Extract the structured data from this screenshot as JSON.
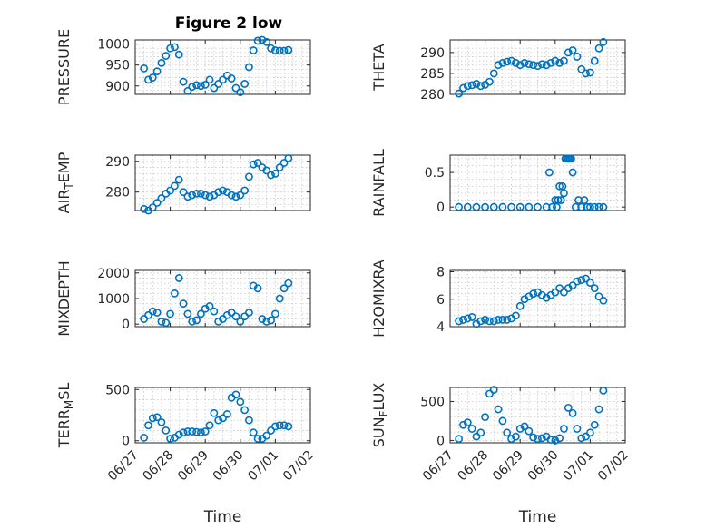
{
  "figure": {
    "title": "Figure 2 low"
  },
  "chart_data": [
    {
      "id": "pressure",
      "type": "scatter",
      "title": "Figure 2 low",
      "ylabel": "PRESSURE",
      "ylabel_sub": "",
      "ylabel_tail": "",
      "xlim": [
        "06/27",
        "07/02"
      ],
      "ylim": [
        880,
        1010
      ],
      "yticks": [
        900,
        950,
        1000
      ],
      "xlabel": "",
      "show_xticklabels": false,
      "x": [
        "06/27 06:00",
        "06/27 09:00",
        "06/27 12:00",
        "06/27 15:00",
        "06/27 18:00",
        "06/27 21:00",
        "06/28 00:00",
        "06/28 03:00",
        "06/28 06:00",
        "06/28 09:00",
        "06/28 12:00",
        "06/28 15:00",
        "06/28 18:00",
        "06/28 21:00",
        "06/29 00:00",
        "06/29 03:00",
        "06/29 06:00",
        "06/29 09:00",
        "06/29 12:00",
        "06/29 15:00",
        "06/29 18:00",
        "06/29 21:00",
        "06/30 00:00",
        "06/30 03:00",
        "06/30 06:00",
        "06/30 09:00",
        "06/30 12:00",
        "06/30 15:00",
        "06/30 18:00",
        "06/30 21:00",
        "07/01 00:00",
        "07/01 03:00",
        "07/01 06:00",
        "07/01 09:00"
      ],
      "y": [
        942,
        915,
        920,
        935,
        955,
        972,
        990,
        993,
        975,
        910,
        888,
        898,
        902,
        900,
        903,
        915,
        895,
        905,
        915,
        925,
        918,
        895,
        885,
        905,
        945,
        985,
        1008,
        1010,
        1005,
        990,
        985,
        984,
        984,
        986
      ]
    },
    {
      "id": "theta",
      "type": "scatter",
      "title": "",
      "ylabel": "THETA",
      "ylabel_sub": "",
      "ylabel_tail": "",
      "xlim": [
        "06/27",
        "07/02"
      ],
      "ylim": [
        280,
        293
      ],
      "yticks": [
        280,
        285,
        290
      ],
      "xlabel": "",
      "show_xticklabels": false,
      "x": [
        "06/27 06:00",
        "06/27 09:00",
        "06/27 12:00",
        "06/27 15:00",
        "06/27 18:00",
        "06/27 21:00",
        "06/28 00:00",
        "06/28 03:00",
        "06/28 06:00",
        "06/28 09:00",
        "06/28 12:00",
        "06/28 15:00",
        "06/28 18:00",
        "06/28 21:00",
        "06/29 00:00",
        "06/29 03:00",
        "06/29 06:00",
        "06/29 09:00",
        "06/29 12:00",
        "06/29 15:00",
        "06/29 18:00",
        "06/29 21:00",
        "06/30 00:00",
        "06/30 03:00",
        "06/30 06:00",
        "06/30 09:00",
        "06/30 12:00",
        "06/30 15:00",
        "06/30 18:00",
        "06/30 21:00",
        "07/01 00:00",
        "07/01 03:00",
        "07/01 06:00",
        "07/01 09:00"
      ],
      "y": [
        280.2,
        281.5,
        282.0,
        282.2,
        282.5,
        282.0,
        282.3,
        283.0,
        285.0,
        287.0,
        287.5,
        287.8,
        288.0,
        287.5,
        287.0,
        287.5,
        287.2,
        287.0,
        286.8,
        287.2,
        287.0,
        287.5,
        288.0,
        287.5,
        288.0,
        290.0,
        290.5,
        289.0,
        286.0,
        285.0,
        285.2,
        288.0,
        291.0,
        292.5
      ]
    },
    {
      "id": "air_temp",
      "type": "scatter",
      "title": "",
      "ylabel": "AIR",
      "ylabel_sub": "T",
      "ylabel_tail": "EMP",
      "xlim": [
        "06/27",
        "07/02"
      ],
      "ylim": [
        274,
        292
      ],
      "yticks": [
        280,
        290
      ],
      "xlabel": "",
      "show_xticklabels": false,
      "x": [
        "06/27 06:00",
        "06/27 09:00",
        "06/27 12:00",
        "06/27 15:00",
        "06/27 18:00",
        "06/27 21:00",
        "06/28 00:00",
        "06/28 03:00",
        "06/28 06:00",
        "06/28 09:00",
        "06/28 12:00",
        "06/28 15:00",
        "06/28 18:00",
        "06/28 21:00",
        "06/29 00:00",
        "06/29 03:00",
        "06/29 06:00",
        "06/29 09:00",
        "06/29 12:00",
        "06/29 15:00",
        "06/29 18:00",
        "06/29 21:00",
        "06/30 00:00",
        "06/30 03:00",
        "06/30 06:00",
        "06/30 09:00",
        "06/30 12:00",
        "06/30 15:00",
        "06/30 18:00",
        "06/30 21:00",
        "07/01 00:00",
        "07/01 03:00",
        "07/01 06:00",
        "07/01 09:00"
      ],
      "y": [
        274.5,
        274.0,
        275.0,
        276.5,
        278.0,
        279.5,
        280.5,
        282.0,
        284.0,
        280.0,
        278.5,
        279.0,
        279.5,
        279.5,
        279.0,
        278.5,
        279.0,
        280.0,
        280.5,
        280.0,
        279.0,
        278.5,
        279.0,
        280.5,
        285.0,
        289.0,
        289.5,
        288.0,
        287.0,
        285.5,
        286.0,
        288.0,
        289.5,
        291.0
      ]
    },
    {
      "id": "rainfall",
      "type": "scatter",
      "title": "",
      "ylabel": "RAINFALL",
      "ylabel_sub": "",
      "ylabel_tail": "",
      "xlim": [
        "06/27",
        "07/02"
      ],
      "ylim": [
        -0.05,
        0.75
      ],
      "yticks": [
        0,
        0.5
      ],
      "xlabel": "",
      "show_xticklabels": false,
      "x": [
        "06/27 06:00",
        "06/27 12:00",
        "06/27 18:00",
        "06/28 00:00",
        "06/28 06:00",
        "06/28 12:00",
        "06/28 18:00",
        "06/29 00:00",
        "06/29 06:00",
        "06/29 12:00",
        "06/29 18:00",
        "06/29 20:00",
        "06/29 22:00",
        "06/30 00:00",
        "06/30 01:00",
        "06/30 02:00",
        "06/30 03:00",
        "06/30 04:00",
        "06/30 05:00",
        "06/30 06:00",
        "06/30 07:00",
        "06/30 08:00",
        "06/30 09:00",
        "06/30 10:00",
        "06/30 11:00",
        "06/30 12:00",
        "06/30 14:00",
        "06/30 16:00",
        "06/30 18:00",
        "06/30 20:00",
        "06/30 22:00",
        "07/01 00:00",
        "07/01 03:00",
        "07/01 06:00",
        "07/01 09:00"
      ],
      "y": [
        0,
        0,
        0,
        0,
        0,
        0,
        0,
        0,
        0,
        0,
        0,
        0.5,
        0,
        0.1,
        0,
        0.1,
        0.3,
        0.1,
        0.3,
        0.2,
        0.7,
        0.7,
        0.7,
        0.7,
        0.7,
        0.5,
        0,
        0.1,
        0,
        0.1,
        0,
        0,
        0,
        0,
        0
      ]
    },
    {
      "id": "mixdepth",
      "type": "scatter",
      "title": "",
      "ylabel": "MIXDEPTH",
      "ylabel_sub": "",
      "ylabel_tail": "",
      "xlim": [
        "06/27",
        "07/02"
      ],
      "ylim": [
        -100,
        2100
      ],
      "yticks": [
        0,
        1000,
        2000
      ],
      "xlabel": "",
      "show_xticklabels": false,
      "x": [
        "06/27 06:00",
        "06/27 09:00",
        "06/27 12:00",
        "06/27 15:00",
        "06/27 18:00",
        "06/27 21:00",
        "06/28 00:00",
        "06/28 03:00",
        "06/28 06:00",
        "06/28 09:00",
        "06/28 12:00",
        "06/28 15:00",
        "06/28 18:00",
        "06/28 21:00",
        "06/29 00:00",
        "06/29 03:00",
        "06/29 06:00",
        "06/29 09:00",
        "06/29 12:00",
        "06/29 15:00",
        "06/29 18:00",
        "06/29 21:00",
        "06/30 00:00",
        "06/30 03:00",
        "06/30 06:00",
        "06/30 09:00",
        "06/30 12:00",
        "06/30 15:00",
        "06/30 18:00",
        "06/30 21:00",
        "07/01 00:00",
        "07/01 03:00",
        "07/01 06:00",
        "07/01 09:00"
      ],
      "y": [
        200,
        350,
        500,
        450,
        100,
        50,
        400,
        1200,
        1800,
        800,
        400,
        100,
        150,
        400,
        600,
        700,
        500,
        100,
        200,
        350,
        450,
        300,
        100,
        300,
        450,
        1500,
        1400,
        200,
        100,
        150,
        400,
        1000,
        1400,
        1600
      ]
    },
    {
      "id": "h2omixra",
      "type": "scatter",
      "title": "",
      "ylabel": "H2OMIXRA",
      "ylabel_sub": "",
      "ylabel_tail": "",
      "xlim": [
        "06/27",
        "07/02"
      ],
      "ylim": [
        4,
        8.1
      ],
      "yticks": [
        4,
        6,
        8
      ],
      "xlabel": "",
      "show_xticklabels": false,
      "x": [
        "06/27 06:00",
        "06/27 09:00",
        "06/27 12:00",
        "06/27 15:00",
        "06/27 18:00",
        "06/27 21:00",
        "06/28 00:00",
        "06/28 03:00",
        "06/28 06:00",
        "06/28 09:00",
        "06/28 12:00",
        "06/28 15:00",
        "06/28 18:00",
        "06/28 21:00",
        "06/29 00:00",
        "06/29 03:00",
        "06/29 06:00",
        "06/29 09:00",
        "06/29 12:00",
        "06/29 15:00",
        "06/29 18:00",
        "06/29 21:00",
        "06/30 00:00",
        "06/30 03:00",
        "06/30 06:00",
        "06/30 09:00",
        "06/30 12:00",
        "06/30 15:00",
        "06/30 18:00",
        "06/30 21:00",
        "07/01 00:00",
        "07/01 03:00",
        "07/01 06:00",
        "07/01 09:00"
      ],
      "y": [
        4.4,
        4.5,
        4.6,
        4.7,
        4.2,
        4.4,
        4.5,
        4.4,
        4.4,
        4.5,
        4.5,
        4.5,
        4.6,
        4.8,
        5.5,
        6.0,
        6.2,
        6.4,
        6.5,
        6.3,
        6.1,
        6.3,
        6.5,
        6.8,
        6.5,
        6.8,
        7.0,
        7.3,
        7.4,
        7.5,
        7.2,
        6.8,
        6.2,
        5.9
      ]
    },
    {
      "id": "terr_msl",
      "type": "scatter",
      "title": "",
      "ylabel": "TERR",
      "ylabel_sub": "M",
      "ylabel_tail": "SL",
      "xlim": [
        "06/27",
        "07/02"
      ],
      "ylim": [
        -20,
        520
      ],
      "yticks": [
        0,
        500
      ],
      "xlabel": "Time",
      "show_xticklabels": true,
      "xticks": [
        "06/27",
        "06/28",
        "06/29",
        "06/30",
        "07/01",
        "07/02"
      ],
      "x": [
        "06/27 06:00",
        "06/27 09:00",
        "06/27 12:00",
        "06/27 15:00",
        "06/27 18:00",
        "06/27 21:00",
        "06/28 00:00",
        "06/28 03:00",
        "06/28 06:00",
        "06/28 09:00",
        "06/28 12:00",
        "06/28 15:00",
        "06/28 18:00",
        "06/28 21:00",
        "06/29 00:00",
        "06/29 03:00",
        "06/29 06:00",
        "06/29 09:00",
        "06/29 12:00",
        "06/29 15:00",
        "06/29 18:00",
        "06/29 21:00",
        "06/30 00:00",
        "06/30 03:00",
        "06/30 06:00",
        "06/30 09:00",
        "06/30 12:00",
        "06/30 15:00",
        "06/30 18:00",
        "06/30 21:00",
        "07/01 00:00",
        "07/01 03:00",
        "07/01 06:00",
        "07/01 09:00"
      ],
      "y": [
        30,
        150,
        220,
        230,
        180,
        100,
        20,
        30,
        60,
        80,
        90,
        90,
        85,
        80,
        90,
        150,
        270,
        200,
        220,
        260,
        420,
        450,
        380,
        300,
        200,
        80,
        20,
        20,
        50,
        100,
        140,
        150,
        150,
        140
      ]
    },
    {
      "id": "sun_flux",
      "type": "scatter",
      "title": "",
      "ylabel": "SUN",
      "ylabel_sub": "F",
      "ylabel_tail": "LUX",
      "xlim": [
        "06/27",
        "07/02"
      ],
      "ylim": [
        -30,
        680
      ],
      "yticks": [
        0,
        500
      ],
      "xlabel": "Time",
      "show_xticklabels": true,
      "xticks": [
        "06/27",
        "06/28",
        "06/29",
        "06/30",
        "07/01",
        "07/02"
      ],
      "x": [
        "06/27 06:00",
        "06/27 09:00",
        "06/27 12:00",
        "06/27 15:00",
        "06/27 18:00",
        "06/27 21:00",
        "06/28 00:00",
        "06/28 03:00",
        "06/28 06:00",
        "06/28 09:00",
        "06/28 12:00",
        "06/28 15:00",
        "06/28 18:00",
        "06/28 21:00",
        "06/29 00:00",
        "06/29 03:00",
        "06/29 06:00",
        "06/29 09:00",
        "06/29 12:00",
        "06/29 15:00",
        "06/29 18:00",
        "06/29 21:00",
        "06/30 00:00",
        "06/30 03:00",
        "06/30 06:00",
        "06/30 09:00",
        "06/30 12:00",
        "06/30 15:00",
        "06/30 18:00",
        "06/30 21:00",
        "07/01 00:00",
        "07/01 03:00",
        "07/01 06:00",
        "07/01 09:00"
      ],
      "y": [
        20,
        200,
        230,
        150,
        50,
        100,
        300,
        600,
        650,
        400,
        250,
        100,
        20,
        50,
        150,
        180,
        120,
        40,
        20,
        30,
        50,
        10,
        0,
        30,
        150,
        420,
        350,
        150,
        30,
        50,
        100,
        200,
        400,
        640
      ]
    }
  ]
}
